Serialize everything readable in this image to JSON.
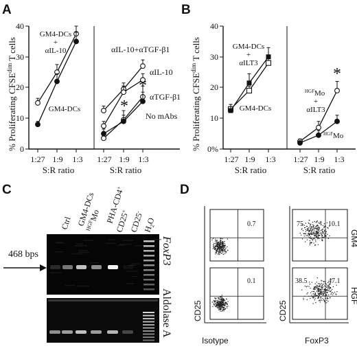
{
  "panels": {
    "A": {
      "label": "A",
      "ylabel_pre": "% Proliferating CFSE",
      "ylabel_sup": "dim",
      "ylabel_post": " T cells",
      "xlabel": "S:R ratio",
      "left_annotations": [
        "GM4-DCs",
        "+",
        "αIL-10",
        "GM4-DCs"
      ],
      "right_annotations": [
        "αIL-10+αTGF-β1",
        "αIL-10",
        "αTGF-β1",
        "No mAbs"
      ],
      "stars": [
        "*",
        "*"
      ]
    },
    "B": {
      "label": "B",
      "ylabel_pre": "% Proliferating CFSE",
      "ylabel_sup": "dim",
      "ylabel_post": " T cells",
      "xlabel": "S:R ratio",
      "left_annotations": [
        "GM4-DCs",
        "+",
        "αILT3",
        "GM4-DCs"
      ],
      "right_annotations": {
        "hgf_sup": "HGF",
        "mo": "Mo",
        "plus": "+",
        "ilt3": "αILT3",
        "hgf_sup2": "HGF",
        "mo2": "Mo"
      },
      "stars": [
        "*"
      ]
    },
    "C": {
      "label": "C",
      "lanes": [
        "Ctrl",
        "GM4-DCs",
        "HGF",
        "Mo",
        "PHA-CD4",
        "+",
        "CD25",
        "+",
        "CD25",
        "-",
        "H",
        "2",
        "O"
      ],
      "marker_label": "468 bps",
      "gene_top": "FoxP3",
      "gene_bottom": "Aldolase A"
    },
    "D": {
      "label": "D",
      "row_labels": [
        "GM4",
        "HGF"
      ],
      "ylabel": "CD25",
      "col_labels": [
        "Isotype",
        "FoxP3"
      ],
      "values": {
        "iso_gm4": "0.7",
        "iso_hgf": "0.1",
        "fox_gm4_left": "75",
        "fox_gm4_right": "10.1",
        "fox_hgf_left": "38.5",
        "fox_hgf_right": "47.1"
      }
    }
  },
  "axes": {
    "y_ticks": [
      "0",
      "10",
      "20",
      "30",
      "40"
    ],
    "yB_ticks": [
      "0%",
      "10",
      "20",
      "30",
      "40"
    ],
    "x_ticks": [
      "1:27",
      "1:9",
      "1:3"
    ]
  },
  "chart_data": [
    {
      "type": "line",
      "panel": "A-left",
      "categories": [
        "1:27",
        "1:9",
        "1:3"
      ],
      "ylim": [
        0,
        40
      ],
      "xlabel": "S:R ratio",
      "ylabel": "% Proliferating CFSEdim T cells",
      "series": [
        {
          "marker": "open",
          "values": [
            15,
            25,
            37.5
          ],
          "errors": [
            1.5,
            2.5,
            2.5
          ]
        },
        {
          "marker": "filled",
          "values": [
            8,
            22,
            35
          ],
          "errors": [
            1,
            2.5,
            3
          ]
        }
      ]
    },
    {
      "type": "line",
      "panel": "A-right",
      "categories": [
        "1:27",
        "1:9",
        "1:3"
      ],
      "ylim": [
        0,
        40
      ],
      "series": [
        {
          "name": "αIL-10+αTGF-β1",
          "marker": "open",
          "values": [
            12.5,
            19.5,
            27
          ],
          "errors": [
            1.5,
            2,
            2
          ]
        },
        {
          "name": "αIL-10",
          "marker": "open",
          "values": [
            7.5,
            18.5,
            22.5
          ],
          "errors": [
            1.5,
            2,
            2
          ]
        },
        {
          "name": "αTGF-β1",
          "marker": "open",
          "values": [
            3.5,
            9.5,
            17
          ],
          "errors": [
            1,
            3,
            3.5
          ]
        },
        {
          "name": "No mAbs",
          "marker": "filled",
          "values": [
            5,
            9,
            15.5
          ],
          "errors": [
            1.5,
            2,
            3
          ]
        }
      ]
    },
    {
      "type": "line",
      "panel": "B-left",
      "categories": [
        "1:27",
        "1:9",
        "1:3"
      ],
      "ylim": [
        0,
        40
      ],
      "xlabel": "S:R ratio",
      "ylabel": "% Proliferating CFSEdim T cells",
      "series": [
        {
          "marker": "open",
          "values": [
            13,
            19,
            28
          ],
          "errors": [
            1.5,
            1.5,
            2
          ]
        },
        {
          "marker": "filled",
          "values": [
            12.5,
            21.5,
            30
          ],
          "errors": [
            2,
            3,
            3
          ]
        }
      ]
    },
    {
      "type": "line",
      "panel": "B-right",
      "categories": [
        "1:27",
        "1:9",
        "1:3"
      ],
      "ylim": [
        0,
        40
      ],
      "series": [
        {
          "marker": "open",
          "values": [
            2.5,
            7,
            19
          ],
          "errors": [
            0.8,
            2,
            3
          ]
        },
        {
          "marker": "filled",
          "values": [
            2,
            4.5,
            9
          ],
          "errors": [
            0.5,
            1.5,
            2
          ]
        }
      ]
    }
  ]
}
